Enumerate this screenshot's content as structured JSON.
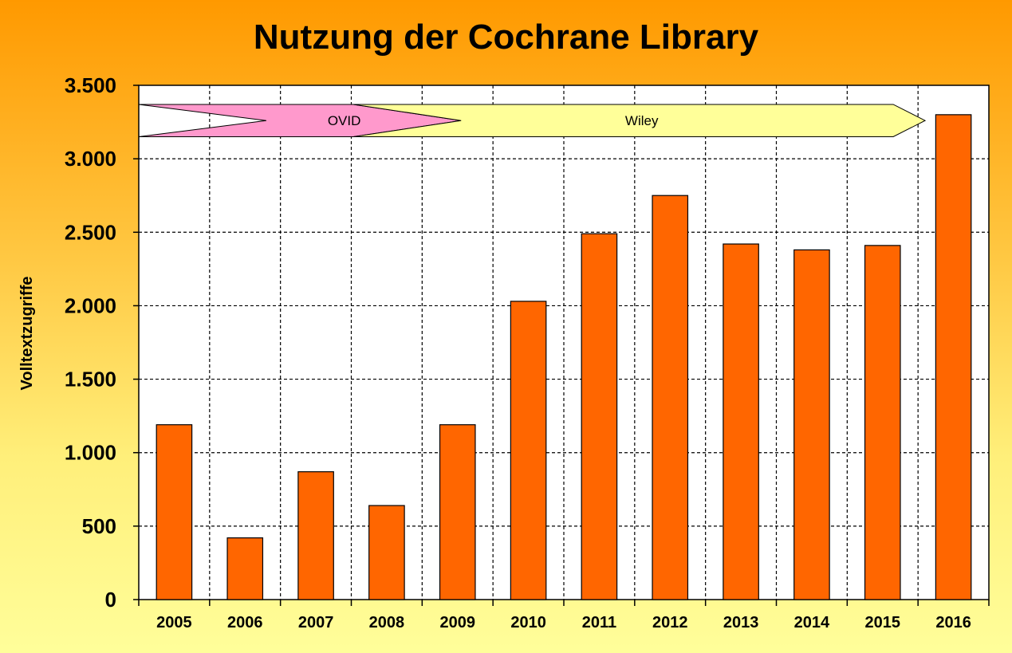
{
  "chart_data": {
    "type": "bar",
    "title": "Nutzung der Cochrane Library",
    "xlabel": "",
    "ylabel": "Volltextzugriffe",
    "categories": [
      "2005",
      "2006",
      "2007",
      "2008",
      "2009",
      "2010",
      "2011",
      "2012",
      "2013",
      "2014",
      "2015",
      "2016"
    ],
    "values": [
      1190,
      420,
      870,
      640,
      1190,
      2030,
      2490,
      2750,
      2420,
      2380,
      2410,
      3300
    ],
    "ylim": [
      0,
      3500
    ],
    "yticks": [
      0,
      500,
      1000,
      1500,
      2000,
      2500,
      3000,
      3500
    ],
    "ytick_labels": [
      "0",
      "500",
      "1.000",
      "1.500",
      "2.000",
      "2.500",
      "3.000",
      "3.500"
    ],
    "grid": true,
    "colors": {
      "bar": "#ff6600",
      "plot_background": "#ffffff",
      "ovid_arrow": "#ff99cc",
      "wiley_arrow": "#ffff99"
    },
    "annotations": [
      {
        "label": "OVID",
        "from": "2005",
        "to": "2009"
      },
      {
        "label": "Wiley",
        "from": "2008",
        "to": "2016"
      }
    ]
  }
}
